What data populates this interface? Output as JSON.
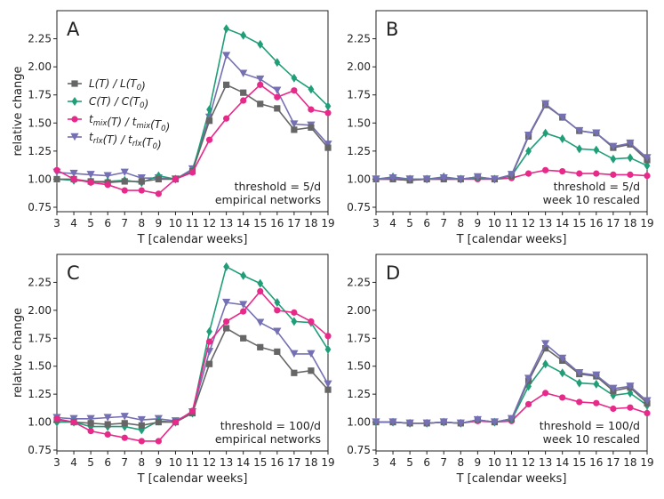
{
  "chart_data": {
    "type": "line",
    "ylabel": "relative change",
    "xlabel": "T [calendar weeks]",
    "x": [
      3,
      4,
      5,
      6,
      7,
      8,
      9,
      10,
      11,
      12,
      13,
      14,
      15,
      16,
      17,
      18,
      19
    ],
    "xlim": [
      3,
      19
    ],
    "ylim": [
      0.75,
      2.5
    ],
    "yticks": [
      "0.75",
      "1.00",
      "1.25",
      "1.50",
      "1.75",
      "2.00",
      "2.25"
    ],
    "legend": {
      "placement": "left",
      "entries": [
        {
          "key": "L",
          "pre": "L(T) / L(T",
          "zero": "0",
          "post": ")"
        },
        {
          "key": "C",
          "pre": "C(T) / C(T",
          "zero": "0",
          "post": ")"
        },
        {
          "key": "tmix",
          "pre": "t",
          "sub1": "mix",
          "mid": "(T) / t",
          "sub2": "mix",
          "mid2": "(T",
          "zero": "0",
          "post": ")"
        },
        {
          "key": "trlx",
          "pre": "t",
          "sub1": "rlx",
          "mid": "(T) / t",
          "sub2": "rlx",
          "mid2": "(T",
          "zero": "0",
          "post": ")"
        }
      ]
    },
    "series_style": {
      "L": {
        "color": "#666666",
        "marker": "square"
      },
      "C": {
        "color": "#1f9e77",
        "marker": "diamond"
      },
      "tmix": {
        "color": "#e7298a",
        "marker": "circle"
      },
      "trlx": {
        "color": "#7570b3",
        "marker": "triangle-down"
      }
    },
    "panels": [
      {
        "letter": "A",
        "annotation": [
          "threshold = 5/d",
          "empirical networks"
        ],
        "series": [
          {
            "key": "trlx",
            "values": [
              1.06,
              1.05,
              1.04,
              1.03,
              1.06,
              1.01,
              1.01,
              1.0,
              1.09,
              1.55,
              2.1,
              1.94,
              1.89,
              1.79,
              1.49,
              1.48,
              1.31
            ]
          },
          {
            "key": "C",
            "values": [
              1.0,
              0.99,
              0.98,
              0.98,
              0.99,
              0.97,
              1.03,
              1.0,
              1.07,
              1.62,
              2.34,
              2.28,
              2.2,
              2.04,
              1.9,
              1.8,
              1.65
            ]
          },
          {
            "key": "L",
            "values": [
              1.0,
              1.0,
              0.98,
              0.97,
              0.98,
              0.98,
              1.0,
              1.0,
              1.07,
              1.52,
              1.84,
              1.77,
              1.67,
              1.63,
              1.44,
              1.46,
              1.28
            ]
          },
          {
            "key": "tmix",
            "values": [
              1.08,
              1.0,
              0.97,
              0.95,
              0.9,
              0.9,
              0.87,
              1.0,
              1.06,
              1.35,
              1.54,
              1.7,
              1.84,
              1.73,
              1.79,
              1.62,
              1.59
            ]
          }
        ]
      },
      {
        "letter": "B",
        "annotation": [
          "threshold = 5/d",
          "week 10 rescaled"
        ],
        "series": [
          {
            "key": "tmix",
            "values": [
              1.0,
              1.0,
              0.99,
              1.0,
              1.0,
              1.0,
              1.0,
              1.0,
              1.01,
              1.05,
              1.08,
              1.07,
              1.05,
              1.05,
              1.04,
              1.04,
              1.03
            ]
          },
          {
            "key": "C",
            "values": [
              1.0,
              1.02,
              1.0,
              1.0,
              1.02,
              1.0,
              1.01,
              1.0,
              1.03,
              1.25,
              1.41,
              1.36,
              1.27,
              1.26,
              1.18,
              1.19,
              1.12
            ]
          },
          {
            "key": "L",
            "values": [
              1.0,
              1.0,
              0.99,
              1.0,
              1.0,
              1.0,
              1.02,
              1.0,
              1.03,
              1.38,
              1.66,
              1.55,
              1.43,
              1.41,
              1.28,
              1.31,
              1.17
            ]
          },
          {
            "key": "trlx",
            "values": [
              1.0,
              1.01,
              1.0,
              1.0,
              1.01,
              1.0,
              1.02,
              1.0,
              1.04,
              1.39,
              1.67,
              1.55,
              1.43,
              1.41,
              1.29,
              1.32,
              1.19
            ]
          }
        ]
      },
      {
        "letter": "C",
        "annotation": [
          "threshold = 100/d",
          "empirical networks"
        ],
        "series": [
          {
            "key": "trlx",
            "values": [
              1.04,
              1.03,
              1.03,
              1.04,
              1.05,
              1.02,
              1.03,
              1.01,
              1.09,
              1.63,
              2.07,
              2.05,
              1.89,
              1.81,
              1.61,
              1.61,
              1.34
            ]
          },
          {
            "key": "C",
            "values": [
              1.0,
              1.0,
              0.96,
              0.96,
              0.96,
              0.93,
              1.01,
              1.0,
              1.08,
              1.81,
              2.39,
              2.31,
              2.24,
              2.07,
              1.9,
              1.89,
              1.65
            ]
          },
          {
            "key": "L",
            "values": [
              1.02,
              1.0,
              0.99,
              0.98,
              0.99,
              0.97,
              1.0,
              1.0,
              1.08,
              1.52,
              1.84,
              1.75,
              1.67,
              1.63,
              1.44,
              1.46,
              1.29
            ]
          },
          {
            "key": "tmix",
            "values": [
              1.03,
              1.0,
              0.92,
              0.89,
              0.86,
              0.83,
              0.83,
              1.0,
              1.1,
              1.72,
              1.9,
              1.99,
              2.17,
              2.0,
              1.98,
              1.9,
              1.77
            ]
          }
        ]
      },
      {
        "letter": "D",
        "annotation": [
          "threshold = 100/d",
          "week 10 rescaled"
        ],
        "series": [
          {
            "key": "tmix",
            "values": [
              1.0,
              1.0,
              0.99,
              0.99,
              1.0,
              0.99,
              1.01,
              1.0,
              1.01,
              1.16,
              1.26,
              1.22,
              1.18,
              1.17,
              1.12,
              1.13,
              1.08
            ]
          },
          {
            "key": "C",
            "values": [
              1.0,
              1.0,
              0.99,
              0.99,
              1.0,
              0.99,
              1.02,
              1.0,
              1.02,
              1.32,
              1.52,
              1.44,
              1.35,
              1.34,
              1.24,
              1.26,
              1.15
            ]
          },
          {
            "key": "L",
            "values": [
              1.0,
              1.0,
              0.99,
              0.99,
              1.0,
              0.99,
              1.02,
              1.0,
              1.03,
              1.37,
              1.66,
              1.55,
              1.43,
              1.41,
              1.28,
              1.31,
              1.17
            ]
          },
          {
            "key": "trlx",
            "values": [
              1.0,
              1.0,
              0.99,
              0.99,
              1.0,
              0.99,
              1.02,
              1.0,
              1.03,
              1.39,
              1.7,
              1.57,
              1.44,
              1.42,
              1.3,
              1.32,
              1.19
            ]
          }
        ]
      }
    ]
  }
}
